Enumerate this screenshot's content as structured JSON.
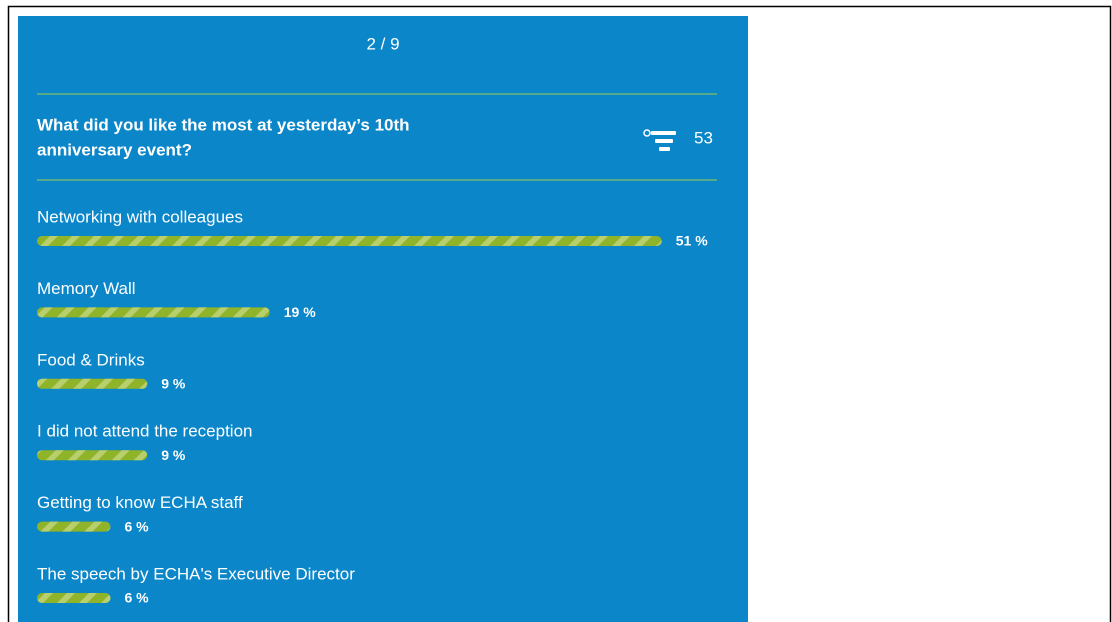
{
  "poll": {
    "progress": "2 / 9",
    "question": [
      "What did you like the most at yesterday’s 10th",
      "anniversary event?"
    ],
    "responses": 53,
    "options": [
      "Networking with colleagues",
      "Memory Wall",
      "Food & Drinks",
      "I did not attend the reception",
      "Getting to know ECHA staff",
      "The speech by ECHA's Executive Director"
    ],
    "values": [
      51,
      19,
      9,
      9,
      6,
      6
    ],
    "value_labels": [
      "51 %",
      "19 %",
      "9 %",
      "9 %",
      "6 %",
      "6 %"
    ],
    "color": "#8fb42a"
  }
}
